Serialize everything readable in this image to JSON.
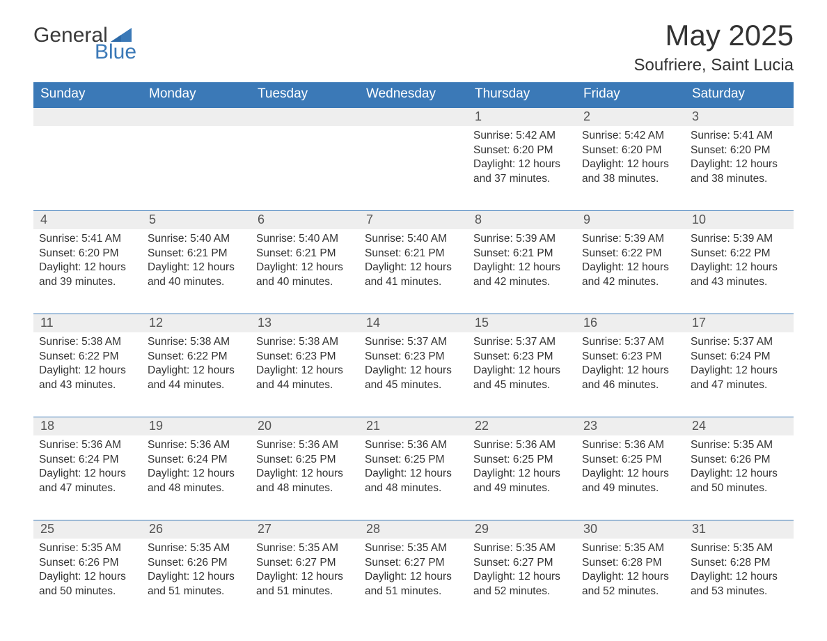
{
  "logo": {
    "word1": "General",
    "word2": "Blue"
  },
  "title": "May 2025",
  "location": "Soufriere, Saint Lucia",
  "colors": {
    "brand_blue": "#3b79b7",
    "header_row_bg": "#eeeeee",
    "text_dark": "#333333",
    "background": "#ffffff"
  },
  "daysOfWeek": [
    "Sunday",
    "Monday",
    "Tuesday",
    "Wednesday",
    "Thursday",
    "Friday",
    "Saturday"
  ],
  "startOffset": 4,
  "daysInMonth": 31,
  "days": {
    "1": {
      "sunrise": "5:42 AM",
      "sunset": "6:20 PM",
      "daylight": "12 hours and 37 minutes."
    },
    "2": {
      "sunrise": "5:42 AM",
      "sunset": "6:20 PM",
      "daylight": "12 hours and 38 minutes."
    },
    "3": {
      "sunrise": "5:41 AM",
      "sunset": "6:20 PM",
      "daylight": "12 hours and 38 minutes."
    },
    "4": {
      "sunrise": "5:41 AM",
      "sunset": "6:20 PM",
      "daylight": "12 hours and 39 minutes."
    },
    "5": {
      "sunrise": "5:40 AM",
      "sunset": "6:21 PM",
      "daylight": "12 hours and 40 minutes."
    },
    "6": {
      "sunrise": "5:40 AM",
      "sunset": "6:21 PM",
      "daylight": "12 hours and 40 minutes."
    },
    "7": {
      "sunrise": "5:40 AM",
      "sunset": "6:21 PM",
      "daylight": "12 hours and 41 minutes."
    },
    "8": {
      "sunrise": "5:39 AM",
      "sunset": "6:21 PM",
      "daylight": "12 hours and 42 minutes."
    },
    "9": {
      "sunrise": "5:39 AM",
      "sunset": "6:22 PM",
      "daylight": "12 hours and 42 minutes."
    },
    "10": {
      "sunrise": "5:39 AM",
      "sunset": "6:22 PM",
      "daylight": "12 hours and 43 minutes."
    },
    "11": {
      "sunrise": "5:38 AM",
      "sunset": "6:22 PM",
      "daylight": "12 hours and 43 minutes."
    },
    "12": {
      "sunrise": "5:38 AM",
      "sunset": "6:22 PM",
      "daylight": "12 hours and 44 minutes."
    },
    "13": {
      "sunrise": "5:38 AM",
      "sunset": "6:23 PM",
      "daylight": "12 hours and 44 minutes."
    },
    "14": {
      "sunrise": "5:37 AM",
      "sunset": "6:23 PM",
      "daylight": "12 hours and 45 minutes."
    },
    "15": {
      "sunrise": "5:37 AM",
      "sunset": "6:23 PM",
      "daylight": "12 hours and 45 minutes."
    },
    "16": {
      "sunrise": "5:37 AM",
      "sunset": "6:23 PM",
      "daylight": "12 hours and 46 minutes."
    },
    "17": {
      "sunrise": "5:37 AM",
      "sunset": "6:24 PM",
      "daylight": "12 hours and 47 minutes."
    },
    "18": {
      "sunrise": "5:36 AM",
      "sunset": "6:24 PM",
      "daylight": "12 hours and 47 minutes."
    },
    "19": {
      "sunrise": "5:36 AM",
      "sunset": "6:24 PM",
      "daylight": "12 hours and 48 minutes."
    },
    "20": {
      "sunrise": "5:36 AM",
      "sunset": "6:25 PM",
      "daylight": "12 hours and 48 minutes."
    },
    "21": {
      "sunrise": "5:36 AM",
      "sunset": "6:25 PM",
      "daylight": "12 hours and 48 minutes."
    },
    "22": {
      "sunrise": "5:36 AM",
      "sunset": "6:25 PM",
      "daylight": "12 hours and 49 minutes."
    },
    "23": {
      "sunrise": "5:36 AM",
      "sunset": "6:25 PM",
      "daylight": "12 hours and 49 minutes."
    },
    "24": {
      "sunrise": "5:35 AM",
      "sunset": "6:26 PM",
      "daylight": "12 hours and 50 minutes."
    },
    "25": {
      "sunrise": "5:35 AM",
      "sunset": "6:26 PM",
      "daylight": "12 hours and 50 minutes."
    },
    "26": {
      "sunrise": "5:35 AM",
      "sunset": "6:26 PM",
      "daylight": "12 hours and 51 minutes."
    },
    "27": {
      "sunrise": "5:35 AM",
      "sunset": "6:27 PM",
      "daylight": "12 hours and 51 minutes."
    },
    "28": {
      "sunrise": "5:35 AM",
      "sunset": "6:27 PM",
      "daylight": "12 hours and 51 minutes."
    },
    "29": {
      "sunrise": "5:35 AM",
      "sunset": "6:27 PM",
      "daylight": "12 hours and 52 minutes."
    },
    "30": {
      "sunrise": "5:35 AM",
      "sunset": "6:28 PM",
      "daylight": "12 hours and 52 minutes."
    },
    "31": {
      "sunrise": "5:35 AM",
      "sunset": "6:28 PM",
      "daylight": "12 hours and 53 minutes."
    }
  },
  "labels": {
    "sunrise": "Sunrise: ",
    "sunset": "Sunset: ",
    "daylight": "Daylight: "
  }
}
